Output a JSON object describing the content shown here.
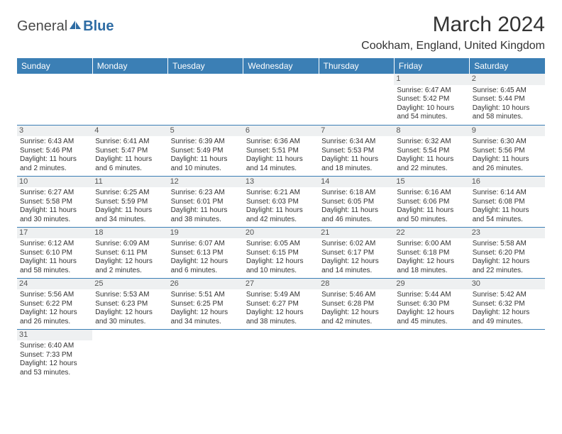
{
  "logo": {
    "left": "General",
    "right": "Blue"
  },
  "title": "March 2024",
  "location": "Cookham, England, United Kingdom",
  "colors": {
    "header_bg": "#3b7fb5",
    "header_text": "#ffffff",
    "daynum_bg": "#eef0f1",
    "cell_border": "#3b7fb5",
    "logo_blue": "#2e6ca4",
    "text": "#333333"
  },
  "day_headers": [
    "Sunday",
    "Monday",
    "Tuesday",
    "Wednesday",
    "Thursday",
    "Friday",
    "Saturday"
  ],
  "weeks": [
    [
      {
        "n": "",
        "empty": true
      },
      {
        "n": "",
        "empty": true
      },
      {
        "n": "",
        "empty": true
      },
      {
        "n": "",
        "empty": true
      },
      {
        "n": "",
        "empty": true
      },
      {
        "n": "1",
        "sr": "Sunrise: 6:47 AM",
        "ss": "Sunset: 5:42 PM",
        "dl": "Daylight: 10 hours and 54 minutes."
      },
      {
        "n": "2",
        "sr": "Sunrise: 6:45 AM",
        "ss": "Sunset: 5:44 PM",
        "dl": "Daylight: 10 hours and 58 minutes."
      }
    ],
    [
      {
        "n": "3",
        "sr": "Sunrise: 6:43 AM",
        "ss": "Sunset: 5:46 PM",
        "dl": "Daylight: 11 hours and 2 minutes."
      },
      {
        "n": "4",
        "sr": "Sunrise: 6:41 AM",
        "ss": "Sunset: 5:47 PM",
        "dl": "Daylight: 11 hours and 6 minutes."
      },
      {
        "n": "5",
        "sr": "Sunrise: 6:39 AM",
        "ss": "Sunset: 5:49 PM",
        "dl": "Daylight: 11 hours and 10 minutes."
      },
      {
        "n": "6",
        "sr": "Sunrise: 6:36 AM",
        "ss": "Sunset: 5:51 PM",
        "dl": "Daylight: 11 hours and 14 minutes."
      },
      {
        "n": "7",
        "sr": "Sunrise: 6:34 AM",
        "ss": "Sunset: 5:53 PM",
        "dl": "Daylight: 11 hours and 18 minutes."
      },
      {
        "n": "8",
        "sr": "Sunrise: 6:32 AM",
        "ss": "Sunset: 5:54 PM",
        "dl": "Daylight: 11 hours and 22 minutes."
      },
      {
        "n": "9",
        "sr": "Sunrise: 6:30 AM",
        "ss": "Sunset: 5:56 PM",
        "dl": "Daylight: 11 hours and 26 minutes."
      }
    ],
    [
      {
        "n": "10",
        "sr": "Sunrise: 6:27 AM",
        "ss": "Sunset: 5:58 PM",
        "dl": "Daylight: 11 hours and 30 minutes."
      },
      {
        "n": "11",
        "sr": "Sunrise: 6:25 AM",
        "ss": "Sunset: 5:59 PM",
        "dl": "Daylight: 11 hours and 34 minutes."
      },
      {
        "n": "12",
        "sr": "Sunrise: 6:23 AM",
        "ss": "Sunset: 6:01 PM",
        "dl": "Daylight: 11 hours and 38 minutes."
      },
      {
        "n": "13",
        "sr": "Sunrise: 6:21 AM",
        "ss": "Sunset: 6:03 PM",
        "dl": "Daylight: 11 hours and 42 minutes."
      },
      {
        "n": "14",
        "sr": "Sunrise: 6:18 AM",
        "ss": "Sunset: 6:05 PM",
        "dl": "Daylight: 11 hours and 46 minutes."
      },
      {
        "n": "15",
        "sr": "Sunrise: 6:16 AM",
        "ss": "Sunset: 6:06 PM",
        "dl": "Daylight: 11 hours and 50 minutes."
      },
      {
        "n": "16",
        "sr": "Sunrise: 6:14 AM",
        "ss": "Sunset: 6:08 PM",
        "dl": "Daylight: 11 hours and 54 minutes."
      }
    ],
    [
      {
        "n": "17",
        "sr": "Sunrise: 6:12 AM",
        "ss": "Sunset: 6:10 PM",
        "dl": "Daylight: 11 hours and 58 minutes."
      },
      {
        "n": "18",
        "sr": "Sunrise: 6:09 AM",
        "ss": "Sunset: 6:11 PM",
        "dl": "Daylight: 12 hours and 2 minutes."
      },
      {
        "n": "19",
        "sr": "Sunrise: 6:07 AM",
        "ss": "Sunset: 6:13 PM",
        "dl": "Daylight: 12 hours and 6 minutes."
      },
      {
        "n": "20",
        "sr": "Sunrise: 6:05 AM",
        "ss": "Sunset: 6:15 PM",
        "dl": "Daylight: 12 hours and 10 minutes."
      },
      {
        "n": "21",
        "sr": "Sunrise: 6:02 AM",
        "ss": "Sunset: 6:17 PM",
        "dl": "Daylight: 12 hours and 14 minutes."
      },
      {
        "n": "22",
        "sr": "Sunrise: 6:00 AM",
        "ss": "Sunset: 6:18 PM",
        "dl": "Daylight: 12 hours and 18 minutes."
      },
      {
        "n": "23",
        "sr": "Sunrise: 5:58 AM",
        "ss": "Sunset: 6:20 PM",
        "dl": "Daylight: 12 hours and 22 minutes."
      }
    ],
    [
      {
        "n": "24",
        "sr": "Sunrise: 5:56 AM",
        "ss": "Sunset: 6:22 PM",
        "dl": "Daylight: 12 hours and 26 minutes."
      },
      {
        "n": "25",
        "sr": "Sunrise: 5:53 AM",
        "ss": "Sunset: 6:23 PM",
        "dl": "Daylight: 12 hours and 30 minutes."
      },
      {
        "n": "26",
        "sr": "Sunrise: 5:51 AM",
        "ss": "Sunset: 6:25 PM",
        "dl": "Daylight: 12 hours and 34 minutes."
      },
      {
        "n": "27",
        "sr": "Sunrise: 5:49 AM",
        "ss": "Sunset: 6:27 PM",
        "dl": "Daylight: 12 hours and 38 minutes."
      },
      {
        "n": "28",
        "sr": "Sunrise: 5:46 AM",
        "ss": "Sunset: 6:28 PM",
        "dl": "Daylight: 12 hours and 42 minutes."
      },
      {
        "n": "29",
        "sr": "Sunrise: 5:44 AM",
        "ss": "Sunset: 6:30 PM",
        "dl": "Daylight: 12 hours and 45 minutes."
      },
      {
        "n": "30",
        "sr": "Sunrise: 5:42 AM",
        "ss": "Sunset: 6:32 PM",
        "dl": "Daylight: 12 hours and 49 minutes."
      }
    ],
    [
      {
        "n": "31",
        "sr": "Sunrise: 6:40 AM",
        "ss": "Sunset: 7:33 PM",
        "dl": "Daylight: 12 hours and 53 minutes."
      },
      {
        "n": "",
        "empty": true
      },
      {
        "n": "",
        "empty": true
      },
      {
        "n": "",
        "empty": true
      },
      {
        "n": "",
        "empty": true
      },
      {
        "n": "",
        "empty": true
      },
      {
        "n": "",
        "empty": true
      }
    ]
  ]
}
